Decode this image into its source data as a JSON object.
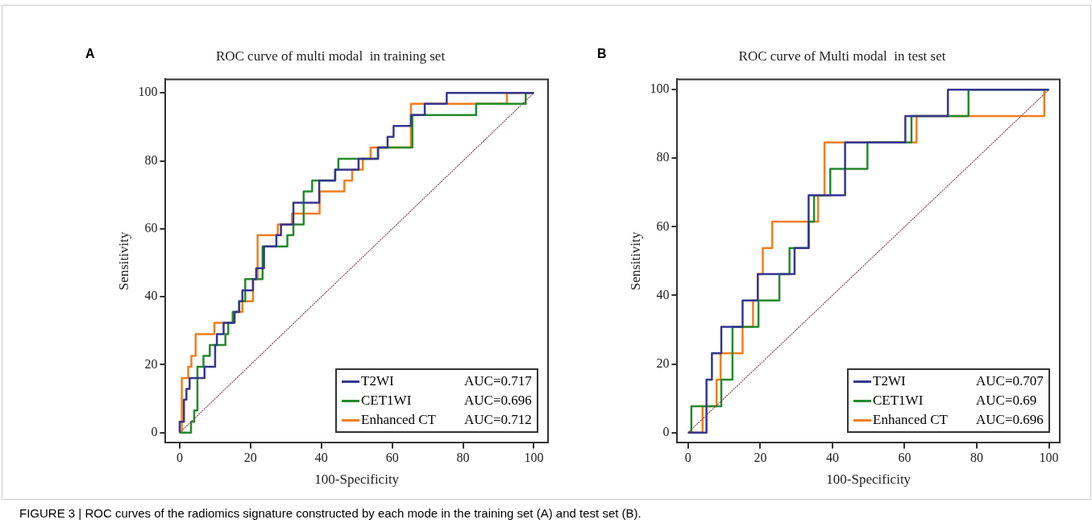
{
  "chart_data": [
    {
      "type": "step",
      "title": "ROC curve of multi modal  in training set",
      "xlabel": "100-Specificity",
      "ylabel": "Sensitivity",
      "xlim": [
        -4,
        104
      ],
      "ylim": [
        -3,
        104
      ],
      "xticks": [
        0,
        20,
        40,
        60,
        80,
        100
      ],
      "yticks": [
        0,
        20,
        40,
        60,
        80,
        100
      ],
      "legend": "bottom right",
      "marker": "none",
      "annotations": [
        "A",
        "AUC=0.717",
        "AUC=0.696",
        "AUC=0.712"
      ],
      "series": [
        {
          "name": "T2WI",
          "color": "#35378f",
          "x": [
            0,
            0,
            1.2,
            1.9,
            2.8,
            7,
            10,
            10.5,
            12.4,
            15.5,
            16.8,
            17.7,
            20.7,
            21.6,
            23.8,
            27.3,
            28.6,
            32.1,
            39.4,
            43.9,
            50.5,
            56,
            58.7,
            60.4,
            65.3,
            69.2,
            75.4,
            100
          ],
          "values": [
            0,
            3.2,
            9.7,
            12.9,
            16.1,
            19.4,
            25.8,
            29,
            32.3,
            35.5,
            38.7,
            41.9,
            45.2,
            48.4,
            54.8,
            58.1,
            61.3,
            67.7,
            74.2,
            77.4,
            80.6,
            83.9,
            87.1,
            90.3,
            93.5,
            96.8,
            100,
            100
          ]
        },
        {
          "name": "CET1WI",
          "color": "#238a2c",
          "x": [
            0,
            3.2,
            4.1,
            5,
            6.7,
            8.5,
            12.9,
            13.7,
            15,
            16.8,
            18.5,
            23.4,
            30.4,
            32.1,
            35,
            37.4,
            43.9,
            44.8,
            56,
            65.7,
            83.7,
            97.7,
            100
          ],
          "values": [
            0,
            3.2,
            6.5,
            19.4,
            22.6,
            25.8,
            29,
            32.3,
            35.5,
            38.7,
            45.2,
            54.8,
            58.1,
            61.3,
            71,
            74.2,
            77.4,
            80.6,
            83.9,
            93.5,
            96.8,
            100,
            100
          ]
        },
        {
          "name": "Enhanced CT",
          "color": "#f07f1e",
          "x": [
            0,
            0.6,
            2.4,
            3.3,
            4.5,
            9.8,
            15,
            17.7,
            20.7,
            22,
            27.7,
            31.7,
            39.5,
            46.5,
            48.7,
            51.7,
            53.9,
            65.3,
            92.4,
            100
          ],
          "values": [
            0,
            16.1,
            19.4,
            22.6,
            29,
            32.3,
            35.5,
            38.7,
            45.2,
            58.1,
            61.3,
            64.5,
            71,
            74.2,
            77.4,
            80.6,
            83.9,
            96.8,
            100,
            100
          ]
        },
        {
          "type": "line",
          "color": "#8a4a5c",
          "line_style": "dotted",
          "x": [
            0,
            100
          ],
          "values": [
            0,
            100
          ]
        }
      ]
    },
    {
      "type": "step",
      "title": "ROC curve of Multi modal  in test set",
      "xlabel": "100-Specificity",
      "ylabel": "Sensitivity",
      "xlim": [
        -3,
        103
      ],
      "ylim": [
        -3,
        103
      ],
      "xticks": [
        0,
        20,
        40,
        60,
        80,
        100
      ],
      "yticks": [
        0,
        20,
        40,
        60,
        80,
        100
      ],
      "legend": "bottom right",
      "marker": "none",
      "annotations": [
        "B",
        "AUC=0.707",
        "AUC=0.69",
        "AUC=0.696",
        "FIGURE 3 | ROC curves of the radiomics signature constructed by each mode in the training set (A) and test set (B)."
      ],
      "series": [
        {
          "name": "T2WI",
          "color": "#35378f",
          "x": [
            0,
            5.1,
            6.6,
            9.2,
            15.1,
            19.3,
            29.5,
            33.4,
            43.5,
            60.2,
            72,
            100
          ],
          "values": [
            0,
            15.4,
            23.1,
            30.8,
            38.5,
            46.2,
            53.8,
            69.2,
            84.6,
            92.3,
            100,
            100
          ]
        },
        {
          "name": "CET1WI",
          "color": "#238a2c",
          "x": [
            0,
            0.9,
            9.2,
            12.3,
            19.5,
            25.3,
            28.1,
            33.4,
            34.9,
            39.4,
            49.7,
            61.9,
            77.7,
            100
          ],
          "values": [
            0,
            7.7,
            15.4,
            30.8,
            38.5,
            46.2,
            53.8,
            61.5,
            69.2,
            76.9,
            84.6,
            92.3,
            100,
            100
          ]
        },
        {
          "name": "Enhanced CT",
          "color": "#f07f1e",
          "x": [
            0,
            4,
            7.9,
            9,
            15.1,
            18,
            19.3,
            20.7,
            23.3,
            36,
            37.8,
            63.3,
            98.7
          ],
          "values": [
            0,
            7.7,
            15.4,
            23.1,
            30.8,
            38.5,
            46.2,
            53.8,
            61.5,
            69.2,
            84.6,
            92.3,
            100
          ]
        },
        {
          "type": "line",
          "color": "#8a4a5c",
          "line_style": "dotted",
          "x": [
            0,
            100
          ],
          "values": [
            0,
            100
          ]
        }
      ]
    }
  ]
}
